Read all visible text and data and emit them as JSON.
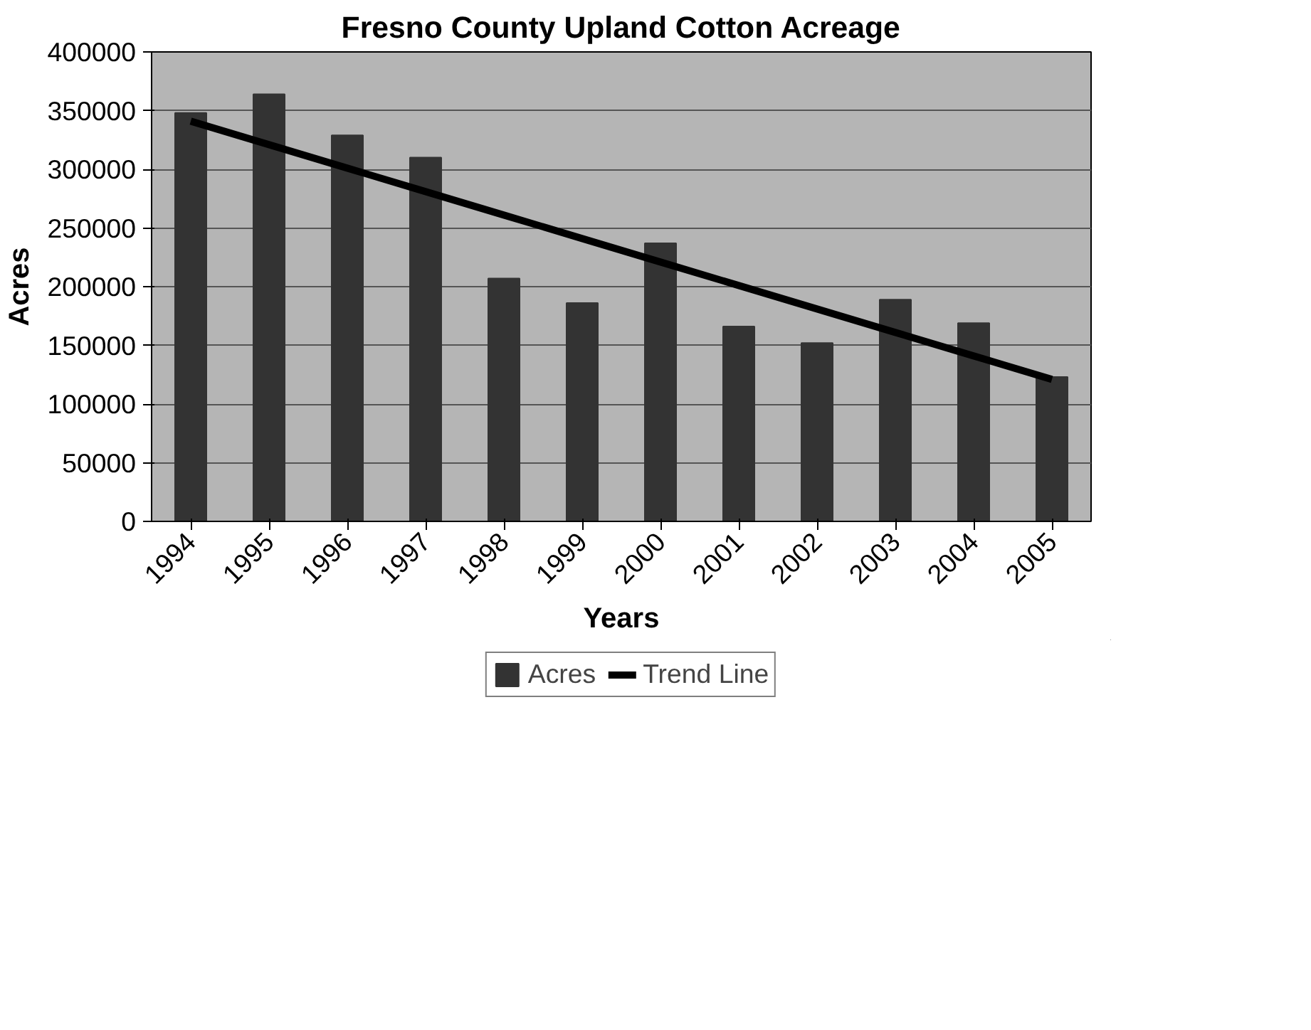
{
  "chart_data": {
    "type": "bar",
    "title": "Fresno County Upland Cotton Acreage",
    "xlabel": "Years",
    "ylabel": "Acres",
    "categories": [
      "1994",
      "1995",
      "1996",
      "1997",
      "1998",
      "1999",
      "2000",
      "2001",
      "2002",
      "2003",
      "2004",
      "2005"
    ],
    "series": [
      {
        "name": "Acres",
        "color": "#333333",
        "values": [
          348000,
          364000,
          329000,
          310000,
          207000,
          186000,
          237000,
          166000,
          152000,
          189000,
          169000,
          123000
        ]
      },
      {
        "name": "Trend Line",
        "type": "line",
        "color": "#000000",
        "values": [
          341000,
          321000,
          301000,
          281000,
          261000,
          241000,
          221000,
          201000,
          181000,
          161000,
          141000,
          121000
        ]
      }
    ],
    "ylim": [
      0,
      400000
    ],
    "yticks": [
      0,
      50000,
      100000,
      150000,
      200000,
      250000,
      300000,
      350000,
      400000
    ],
    "grid": "y",
    "legend": "bottom",
    "line_style": "solid"
  }
}
